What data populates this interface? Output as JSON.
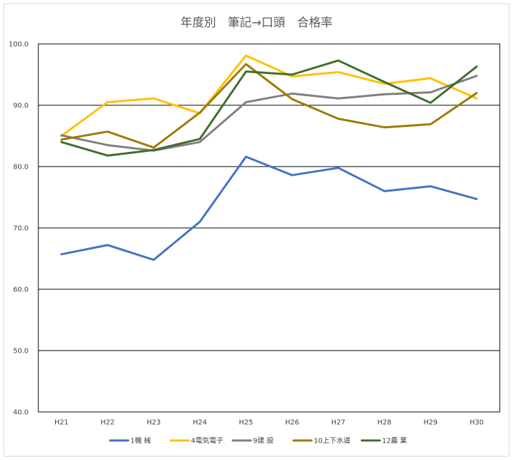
{
  "chart_data": {
    "type": "line",
    "title": "年度別　筆記→口頭　合格率",
    "xlabel": "",
    "ylabel": "",
    "categories": [
      "H21",
      "H22",
      "H23",
      "H24",
      "H25",
      "H26",
      "H27",
      "H28",
      "H29",
      "H30"
    ],
    "ylim": [
      40.0,
      100.0
    ],
    "yticks": [
      "40.0",
      "50.0",
      "60.0",
      "70.0",
      "80.0",
      "90.0",
      "100.0"
    ],
    "grid": true,
    "legend_position": "bottom",
    "series": [
      {
        "name": "1機 械",
        "color": "#4472c4",
        "values": [
          65.7,
          67.2,
          64.8,
          71.0,
          81.6,
          78.6,
          79.8,
          76.0,
          76.8,
          74.7
        ]
      },
      {
        "name": "4電気電子",
        "color": "#ffc000",
        "values": [
          85.0,
          90.5,
          91.1,
          88.7,
          98.1,
          94.7,
          95.4,
          93.5,
          94.4,
          91.1
        ]
      },
      {
        "name": "9建 設",
        "color": "#7f7f7f",
        "values": [
          85.1,
          83.5,
          82.6,
          84.0,
          90.5,
          91.9,
          91.1,
          91.8,
          92.1,
          94.8
        ]
      },
      {
        "name": "10上下水道",
        "color": "#9c7a00",
        "values": [
          84.4,
          85.7,
          83.1,
          88.8,
          96.7,
          91.0,
          87.8,
          86.4,
          86.9,
          92.0
        ]
      },
      {
        "name": "12農 業",
        "color": "#3f6d2c",
        "values": [
          84.0,
          81.8,
          82.7,
          84.5,
          95.5,
          95.0,
          97.3,
          93.8,
          90.4,
          96.3
        ]
      }
    ]
  }
}
